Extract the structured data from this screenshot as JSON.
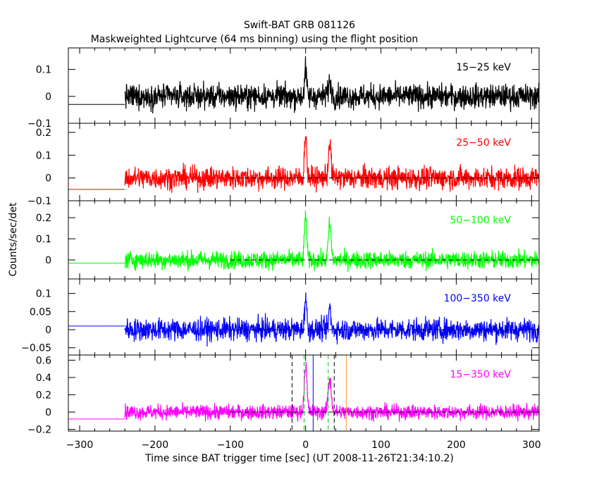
{
  "chart_data": {
    "type": "line",
    "title": "Swift-BAT GRB 081126",
    "subtitle": "Maskweighted Lightcurve (64 ms binning) using the flight position",
    "xlabel": "Time since BAT trigger time [sec] (UT 2008-11-26T21:34:10.2)",
    "ylabel": "Counts/sec/det",
    "xlim": [
      -315,
      310
    ],
    "xticks": [
      -300,
      -200,
      -100,
      0,
      100,
      200,
      300
    ],
    "grid": false,
    "data_start": -240,
    "pre_data_level_note": "flat line before data start",
    "panels": [
      {
        "band": "15–25 keV",
        "label": "15−25 keV",
        "color": "#000000",
        "ylim": [
          -0.1,
          0.18
        ],
        "yticks": [
          -0.1,
          0,
          0.1
        ],
        "ytick_labels": [
          "−0.1",
          "0",
          "0.1"
        ],
        "baseline": -0.03,
        "noise": 0.032,
        "zero_line": false,
        "peaks": [
          {
            "t": 0,
            "amp": 0.1,
            "w": 2
          },
          {
            "t": 32,
            "amp": 0.05,
            "w": 3
          }
        ]
      },
      {
        "band": "25–50 keV",
        "label": "25−50 keV",
        "color": "#ff0000",
        "ylim": [
          -0.1,
          0.24
        ],
        "yticks": [
          -0.1,
          0,
          0.1,
          0.2
        ],
        "ytick_labels": [
          "−0.1",
          "0",
          "0.1",
          "0.2"
        ],
        "baseline": -0.05,
        "noise": 0.035,
        "zero_line": true,
        "peaks": [
          {
            "t": 0,
            "amp": 0.2,
            "w": 2
          },
          {
            "t": 32,
            "amp": 0.15,
            "w": 2.5
          }
        ]
      },
      {
        "band": "50–100 keV",
        "label": "50−100 keV",
        "color": "#00ff00",
        "ylim": [
          -0.09,
          0.28
        ],
        "yticks": [
          0,
          0.1,
          0.2
        ],
        "ytick_labels": [
          "0",
          "0.1",
          "0.2"
        ],
        "baseline": -0.015,
        "noise": 0.03,
        "zero_line": true,
        "peaks": [
          {
            "t": 0,
            "amp": 0.22,
            "w": 2
          },
          {
            "t": 32,
            "amp": 0.17,
            "w": 2.5
          }
        ]
      },
      {
        "band": "100–350 keV",
        "label": "100−350 keV",
        "color": "#0000ff",
        "ylim": [
          -0.07,
          0.14
        ],
        "yticks": [
          -0.05,
          0,
          0.05,
          0.1
        ],
        "ytick_labels": [
          "−0.05",
          "0",
          "0.05",
          "0.1"
        ],
        "baseline": 0.01,
        "noise": 0.022,
        "zero_line": true,
        "peaks": [
          {
            "t": 0,
            "amp": 0.09,
            "w": 2
          },
          {
            "t": 32,
            "amp": 0.06,
            "w": 2
          }
        ]
      },
      {
        "band": "15–350 keV",
        "label": "15−350 keV",
        "color": "#ff00ff",
        "ylim": [
          -0.22,
          0.66
        ],
        "yticks": [
          -0.2,
          0,
          0.2,
          0.4,
          0.6
        ],
        "ytick_labels": [
          "−0.2",
          "0",
          "0.2",
          "0.4",
          "0.6"
        ],
        "baseline": -0.08,
        "noise": 0.06,
        "zero_line": true,
        "peaks": [
          {
            "t": 0,
            "amp": 0.55,
            "w": 2.5
          },
          {
            "t": 32,
            "amp": 0.38,
            "w": 3
          }
        ],
        "markers": [
          {
            "t": -18,
            "color": "#000000",
            "style": "dashed"
          },
          {
            "t": 38,
            "color": "#000000",
            "style": "dashed"
          },
          {
            "t": -2,
            "color": "#00cc00",
            "style": "dashed"
          },
          {
            "t": 30,
            "color": "#00cc00",
            "style": "dashed"
          },
          {
            "t": 10,
            "color": "#0000ff",
            "style": "solid"
          },
          {
            "t": 54,
            "color": "#ff9933",
            "style": "solid"
          }
        ]
      }
    ]
  }
}
